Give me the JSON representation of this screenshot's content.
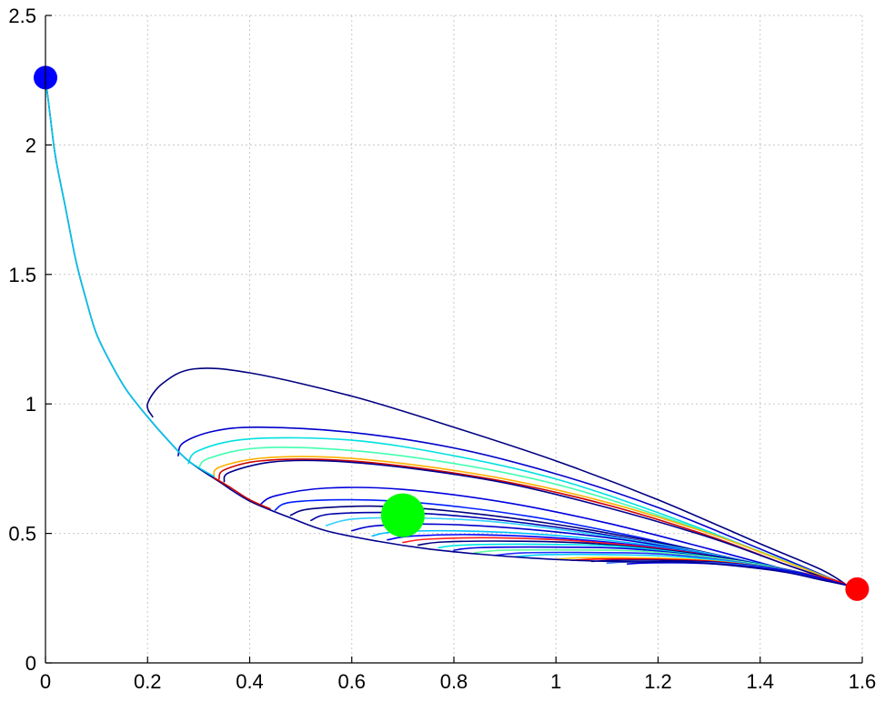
{
  "chart_data": {
    "type": "line",
    "title": "",
    "xlabel": "",
    "ylabel": "",
    "xlim": [
      0,
      1.6
    ],
    "ylim": [
      0,
      2.5
    ],
    "grid": true,
    "xticks": [
      0,
      0.2,
      0.4,
      0.6,
      0.8,
      1,
      1.2,
      1.4,
      1.6
    ],
    "yticks": [
      0,
      0.5,
      1,
      1.5,
      2,
      2.5
    ],
    "xtick_labels": [
      "0",
      "0.2",
      "0.4",
      "0.6",
      "0.8",
      "1",
      "1.2",
      "1.4",
      "1.6"
    ],
    "ytick_labels": [
      "0",
      "0.5",
      "1",
      "1.5",
      "2",
      "2.5"
    ],
    "points": [
      {
        "name": "start",
        "x": 0.0,
        "y": 2.26,
        "color": "#0000ff",
        "size": "medium"
      },
      {
        "name": "mid",
        "x": 0.7,
        "y": 0.57,
        "color": "#00ff00",
        "size": "large"
      },
      {
        "name": "end",
        "x": 1.59,
        "y": 0.285,
        "color": "#ff0000",
        "size": "medium"
      }
    ],
    "series": [
      {
        "color": "#000080",
        "values": [
          [
            0.21,
            0.95
          ],
          [
            0.2,
            1.0
          ],
          [
            0.23,
            1.08
          ],
          [
            0.29,
            1.135
          ],
          [
            0.4,
            1.12
          ],
          [
            0.6,
            1.03
          ],
          [
            0.8,
            0.91
          ],
          [
            1.0,
            0.78
          ],
          [
            1.2,
            0.63
          ],
          [
            1.4,
            0.46
          ],
          [
            1.52,
            0.36
          ],
          [
            1.57,
            0.3
          ]
        ]
      },
      {
        "color": "#0000cc",
        "values": [
          [
            0.26,
            0.8
          ],
          [
            0.27,
            0.85
          ],
          [
            0.33,
            0.895
          ],
          [
            0.42,
            0.91
          ],
          [
            0.6,
            0.89
          ],
          [
            0.8,
            0.83
          ],
          [
            1.0,
            0.73
          ],
          [
            1.2,
            0.6
          ],
          [
            1.4,
            0.44
          ],
          [
            1.57,
            0.3
          ]
        ]
      },
      {
        "color": "#00e0e0",
        "values": [
          [
            0.28,
            0.77
          ],
          [
            0.3,
            0.82
          ],
          [
            0.4,
            0.865
          ],
          [
            0.6,
            0.86
          ],
          [
            0.8,
            0.8
          ],
          [
            1.0,
            0.71
          ],
          [
            1.2,
            0.58
          ],
          [
            1.4,
            0.43
          ],
          [
            1.57,
            0.3
          ]
        ]
      },
      {
        "color": "#40ffb0",
        "values": [
          [
            0.3,
            0.75
          ],
          [
            0.32,
            0.79
          ],
          [
            0.42,
            0.83
          ],
          [
            0.6,
            0.82
          ],
          [
            0.8,
            0.77
          ],
          [
            1.0,
            0.69
          ],
          [
            1.2,
            0.57
          ],
          [
            1.4,
            0.43
          ],
          [
            1.57,
            0.3
          ]
        ]
      },
      {
        "color": "#ffb000",
        "values": [
          [
            0.33,
            0.72
          ],
          [
            0.34,
            0.755
          ],
          [
            0.42,
            0.79
          ],
          [
            0.55,
            0.795
          ],
          [
            0.7,
            0.77
          ],
          [
            0.9,
            0.71
          ],
          [
            1.1,
            0.62
          ],
          [
            1.3,
            0.5
          ],
          [
            1.45,
            0.39
          ],
          [
            1.57,
            0.3
          ]
        ]
      },
      {
        "color": "#cc0000",
        "values": [
          [
            0.34,
            0.71
          ],
          [
            0.35,
            0.745
          ],
          [
            0.42,
            0.78
          ],
          [
            0.55,
            0.785
          ],
          [
            0.7,
            0.76
          ],
          [
            0.9,
            0.7
          ],
          [
            1.1,
            0.61
          ],
          [
            1.3,
            0.49
          ],
          [
            1.45,
            0.38
          ],
          [
            1.57,
            0.3
          ]
        ]
      },
      {
        "color": "#000090",
        "values": [
          [
            0.35,
            0.7
          ],
          [
            0.36,
            0.735
          ],
          [
            0.44,
            0.775
          ],
          [
            0.55,
            0.78
          ],
          [
            0.7,
            0.755
          ],
          [
            0.9,
            0.695
          ],
          [
            1.1,
            0.6
          ],
          [
            1.3,
            0.485
          ],
          [
            1.45,
            0.38
          ],
          [
            1.57,
            0.3
          ]
        ]
      },
      {
        "color": "#0000dd",
        "values": [
          [
            0.42,
            0.61
          ],
          [
            0.45,
            0.645
          ],
          [
            0.55,
            0.675
          ],
          [
            0.7,
            0.67
          ],
          [
            0.9,
            0.62
          ],
          [
            1.1,
            0.54
          ],
          [
            1.3,
            0.44
          ],
          [
            1.45,
            0.36
          ],
          [
            1.57,
            0.3
          ]
        ]
      },
      {
        "color": "#0020ff",
        "values": [
          [
            0.45,
            0.59
          ],
          [
            0.48,
            0.62
          ],
          [
            0.6,
            0.63
          ],
          [
            0.75,
            0.615
          ],
          [
            0.95,
            0.565
          ],
          [
            1.15,
            0.49
          ],
          [
            1.35,
            0.4
          ],
          [
            1.5,
            0.33
          ],
          [
            1.57,
            0.3
          ]
        ]
      },
      {
        "color": "#000080",
        "values": [
          [
            0.48,
            0.57
          ],
          [
            0.52,
            0.595
          ],
          [
            0.65,
            0.605
          ],
          [
            0.8,
            0.585
          ],
          [
            1.0,
            0.535
          ],
          [
            1.2,
            0.465
          ],
          [
            1.4,
            0.38
          ],
          [
            1.57,
            0.3
          ]
        ]
      },
      {
        "color": "#0000aa",
        "values": [
          [
            0.52,
            0.55
          ],
          [
            0.56,
            0.575
          ],
          [
            0.7,
            0.58
          ],
          [
            0.85,
            0.56
          ],
          [
            1.05,
            0.51
          ],
          [
            1.25,
            0.44
          ],
          [
            1.45,
            0.36
          ],
          [
            1.57,
            0.3
          ]
        ]
      },
      {
        "color": "#30d0ff",
        "values": [
          [
            0.55,
            0.53
          ],
          [
            0.6,
            0.555
          ],
          [
            0.72,
            0.56
          ],
          [
            0.88,
            0.545
          ],
          [
            1.08,
            0.495
          ],
          [
            1.28,
            0.43
          ],
          [
            1.45,
            0.355
          ],
          [
            1.57,
            0.3
          ]
        ]
      },
      {
        "color": "#0000cc",
        "values": [
          [
            0.6,
            0.51
          ],
          [
            0.65,
            0.53
          ],
          [
            0.78,
            0.535
          ],
          [
            0.95,
            0.515
          ],
          [
            1.15,
            0.47
          ],
          [
            1.35,
            0.4
          ],
          [
            1.5,
            0.34
          ],
          [
            1.57,
            0.3
          ]
        ]
      },
      {
        "color": "#00c0ff",
        "values": [
          [
            0.64,
            0.49
          ],
          [
            0.68,
            0.505
          ],
          [
            0.8,
            0.51
          ],
          [
            0.98,
            0.495
          ],
          [
            1.18,
            0.455
          ],
          [
            1.38,
            0.39
          ],
          [
            1.5,
            0.335
          ],
          [
            1.57,
            0.3
          ]
        ]
      },
      {
        "color": "#0000ff",
        "values": [
          [
            0.67,
            0.475
          ],
          [
            0.72,
            0.49
          ],
          [
            0.85,
            0.495
          ],
          [
            1.02,
            0.48
          ],
          [
            1.22,
            0.44
          ],
          [
            1.4,
            0.38
          ],
          [
            1.57,
            0.3
          ]
        ]
      },
      {
        "color": "#ff2020",
        "values": [
          [
            0.7,
            0.465
          ],
          [
            0.75,
            0.478
          ],
          [
            0.88,
            0.483
          ],
          [
            1.05,
            0.47
          ],
          [
            1.25,
            0.43
          ],
          [
            1.42,
            0.37
          ],
          [
            1.57,
            0.3
          ]
        ]
      },
      {
        "color": "#000080",
        "values": [
          [
            0.73,
            0.455
          ],
          [
            0.78,
            0.467
          ],
          [
            0.92,
            0.47
          ],
          [
            1.08,
            0.46
          ],
          [
            1.28,
            0.42
          ],
          [
            1.45,
            0.36
          ],
          [
            1.57,
            0.3
          ]
        ]
      },
      {
        "color": "#00e8e8",
        "values": [
          [
            0.77,
            0.445
          ],
          [
            0.82,
            0.455
          ],
          [
            0.96,
            0.458
          ],
          [
            1.12,
            0.45
          ],
          [
            1.3,
            0.41
          ],
          [
            1.47,
            0.35
          ],
          [
            1.57,
            0.3
          ]
        ]
      },
      {
        "color": "#0000dd",
        "values": [
          [
            0.8,
            0.435
          ],
          [
            0.85,
            0.445
          ],
          [
            1.0,
            0.447
          ],
          [
            1.15,
            0.44
          ],
          [
            1.33,
            0.4
          ],
          [
            1.48,
            0.345
          ],
          [
            1.57,
            0.3
          ]
        ]
      },
      {
        "color": "#60ffa0",
        "values": [
          [
            0.84,
            0.425
          ],
          [
            0.9,
            0.435
          ],
          [
            1.04,
            0.436
          ],
          [
            1.18,
            0.43
          ],
          [
            1.35,
            0.395
          ],
          [
            1.5,
            0.34
          ],
          [
            1.57,
            0.3
          ]
        ]
      },
      {
        "color": "#2030ff",
        "values": [
          [
            0.88,
            0.415
          ],
          [
            0.94,
            0.425
          ],
          [
            1.07,
            0.426
          ],
          [
            1.21,
            0.42
          ],
          [
            1.37,
            0.385
          ],
          [
            1.5,
            0.335
          ],
          [
            1.57,
            0.3
          ]
        ]
      },
      {
        "color": "#00d0ff",
        "values": [
          [
            0.92,
            0.41
          ],
          [
            0.98,
            0.418
          ],
          [
            1.1,
            0.418
          ],
          [
            1.24,
            0.41
          ],
          [
            1.39,
            0.378
          ],
          [
            1.52,
            0.33
          ],
          [
            1.57,
            0.3
          ]
        ]
      },
      {
        "color": "#ffcc00",
        "values": [
          [
            1.0,
            0.4
          ],
          [
            1.05,
            0.406
          ],
          [
            1.15,
            0.406
          ],
          [
            1.28,
            0.398
          ],
          [
            1.42,
            0.368
          ],
          [
            1.53,
            0.325
          ],
          [
            1.57,
            0.3
          ]
        ]
      },
      {
        "color": "#ff0000",
        "values": [
          [
            1.03,
            0.396
          ],
          [
            1.08,
            0.401
          ],
          [
            1.18,
            0.401
          ],
          [
            1.3,
            0.393
          ],
          [
            1.43,
            0.365
          ],
          [
            1.54,
            0.322
          ],
          [
            1.57,
            0.3
          ]
        ]
      },
      {
        "color": "#000090",
        "values": [
          [
            1.07,
            0.392
          ],
          [
            1.12,
            0.396
          ],
          [
            1.21,
            0.396
          ],
          [
            1.32,
            0.388
          ],
          [
            1.45,
            0.36
          ],
          [
            1.57,
            0.3
          ]
        ]
      },
      {
        "color": "#4080ff",
        "values": [
          [
            1.1,
            0.385
          ],
          [
            1.14,
            0.39
          ],
          [
            1.23,
            0.39
          ],
          [
            1.34,
            0.382
          ],
          [
            1.46,
            0.355
          ],
          [
            1.57,
            0.3
          ]
        ]
      },
      {
        "color": "#0000dd",
        "values": [
          [
            1.14,
            0.382
          ],
          [
            1.18,
            0.386
          ],
          [
            1.26,
            0.386
          ],
          [
            1.36,
            0.376
          ],
          [
            1.47,
            0.35
          ],
          [
            1.57,
            0.3
          ]
        ]
      }
    ],
    "envelope": {
      "color": "#000090",
      "values": [
        [
          0.0,
          2.26
        ],
        [
          0.01,
          2.1
        ],
        [
          0.02,
          1.95
        ],
        [
          0.04,
          1.75
        ],
        [
          0.06,
          1.55
        ],
        [
          0.08,
          1.4
        ],
        [
          0.1,
          1.27
        ],
        [
          0.13,
          1.15
        ],
        [
          0.16,
          1.05
        ],
        [
          0.2,
          0.95
        ],
        [
          0.24,
          0.86
        ],
        [
          0.28,
          0.78
        ],
        [
          0.34,
          0.7
        ],
        [
          0.4,
          0.625
        ],
        [
          0.48,
          0.56
        ],
        [
          0.55,
          0.51
        ],
        [
          0.65,
          0.47
        ],
        [
          0.75,
          0.44
        ],
        [
          0.85,
          0.42
        ],
        [
          0.95,
          0.405
        ],
        [
          1.05,
          0.395
        ],
        [
          1.15,
          0.39
        ],
        [
          1.25,
          0.39
        ],
        [
          1.35,
          0.375
        ],
        [
          1.45,
          0.35
        ],
        [
          1.52,
          0.32
        ],
        [
          1.57,
          0.3
        ],
        [
          1.59,
          0.285
        ]
      ]
    },
    "envelope_overlays": [
      {
        "color": "#00c8e8",
        "values": [
          [
            0.0,
            2.26
          ],
          [
            0.01,
            2.1
          ],
          [
            0.02,
            1.95
          ],
          [
            0.04,
            1.75
          ],
          [
            0.06,
            1.55
          ],
          [
            0.08,
            1.4
          ],
          [
            0.1,
            1.27
          ],
          [
            0.13,
            1.15
          ],
          [
            0.16,
            1.05
          ],
          [
            0.2,
            0.95
          ],
          [
            0.24,
            0.86
          ],
          [
            0.28,
            0.78
          ],
          [
            0.33,
            0.72
          ]
        ]
      },
      {
        "color": "#cc0000",
        "values": [
          [
            0.33,
            0.715
          ],
          [
            0.36,
            0.68
          ],
          [
            0.4,
            0.63
          ],
          [
            0.44,
            0.595
          ]
        ]
      }
    ]
  }
}
